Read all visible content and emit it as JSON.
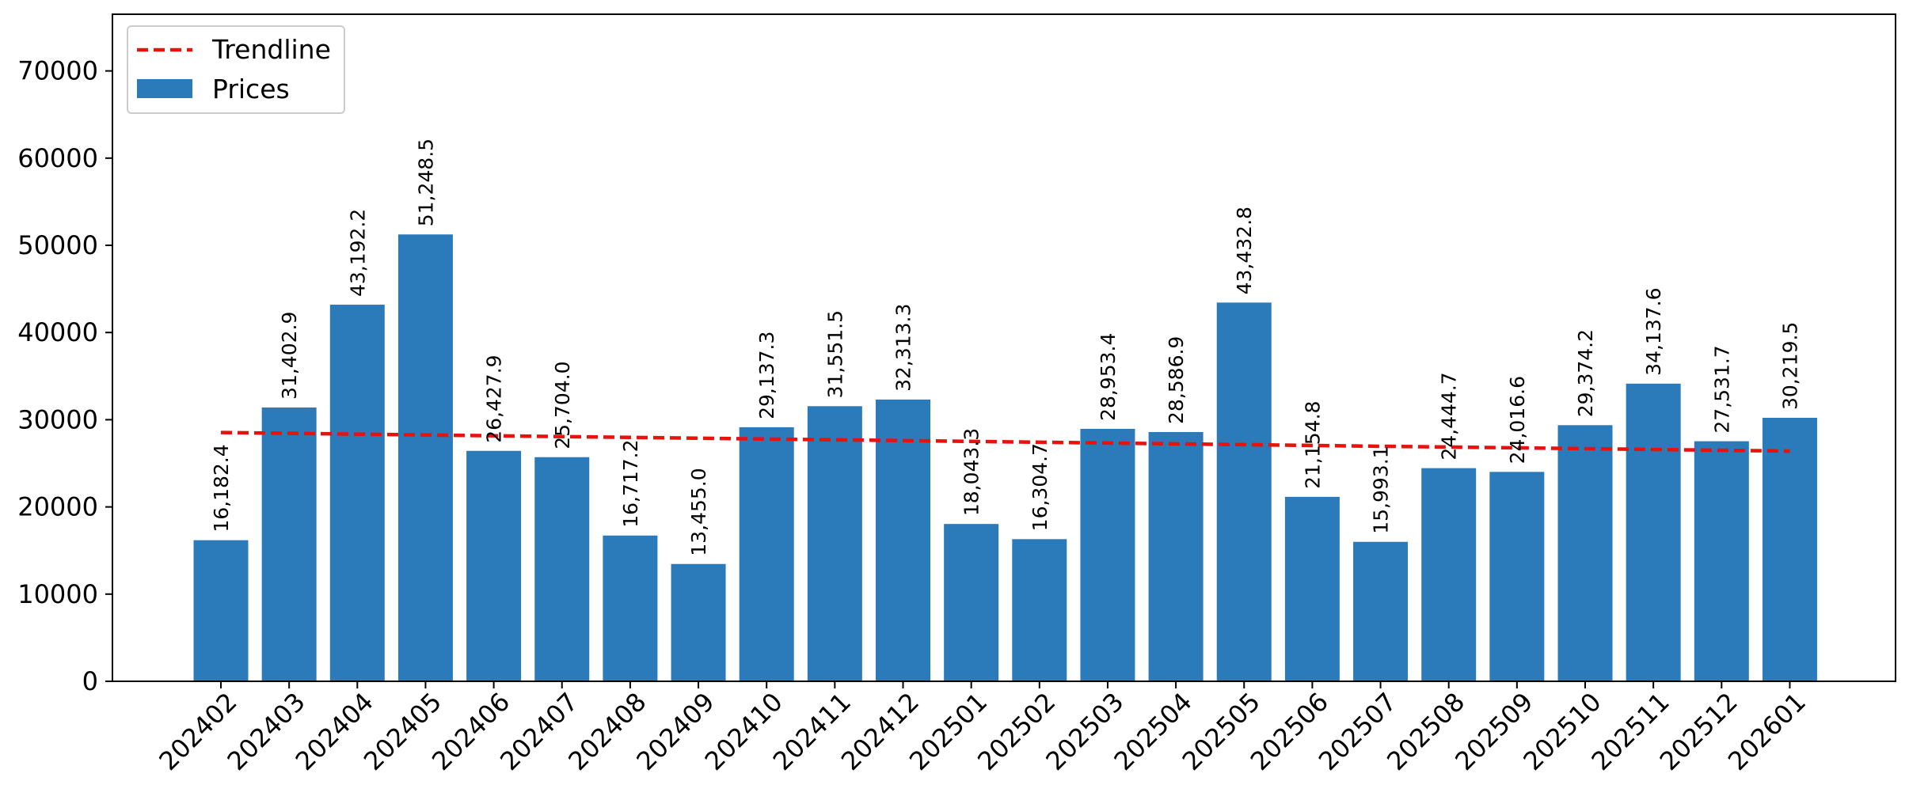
{
  "chart_data": {
    "type": "bar",
    "categories": [
      "202402",
      "202403",
      "202404",
      "202405",
      "202406",
      "202407",
      "202408",
      "202409",
      "202410",
      "202411",
      "202412",
      "202501",
      "202502",
      "202503",
      "202504",
      "202505",
      "202506",
      "202507",
      "202508",
      "202509",
      "202510",
      "202511",
      "202512",
      "202601"
    ],
    "series": [
      {
        "name": "Prices",
        "values": [
          16182.4,
          31402.9,
          43192.2,
          51248.5,
          26427.9,
          25704.0,
          16717.2,
          13455.0,
          29137.3,
          31551.5,
          32313.3,
          18043.3,
          16304.7,
          28953.4,
          28586.9,
          43432.8,
          21154.8,
          15993.1,
          24444.7,
          24016.6,
          29374.2,
          34137.6,
          27531.7,
          30219.5
        ],
        "data_labels": [
          "16,182.4",
          "31,402.9",
          "43,192.2",
          "51,248.5",
          "26,427.9",
          "25,704.0",
          "16,717.2",
          "13,455.0",
          "29,137.3",
          "31,551.5",
          "32,313.3",
          "18,043.3",
          "16,304.7",
          "28,953.4",
          "28,586.9",
          "43,432.8",
          "21,154.8",
          "15,993.1",
          "24,444.7",
          "24,016.6",
          "29,374.2",
          "34,137.6",
          "27,531.7",
          "30,219.5"
        ],
        "color": "#2b7bba"
      },
      {
        "name": "Trendline",
        "type": "line",
        "style": "dashed",
        "start": 28530,
        "end": 26400,
        "color": "#e8120c"
      }
    ],
    "ylim": [
      0,
      76500
    ],
    "yticks": [
      "0",
      "10000",
      "20000",
      "30000",
      "40000",
      "50000",
      "60000",
      "70000"
    ],
    "ytick_values": [
      0,
      10000,
      20000,
      30000,
      40000,
      50000,
      60000,
      70000
    ],
    "xlabel": "",
    "ylabel": "",
    "title": "",
    "grid": false,
    "legend_position": "upper-left"
  }
}
